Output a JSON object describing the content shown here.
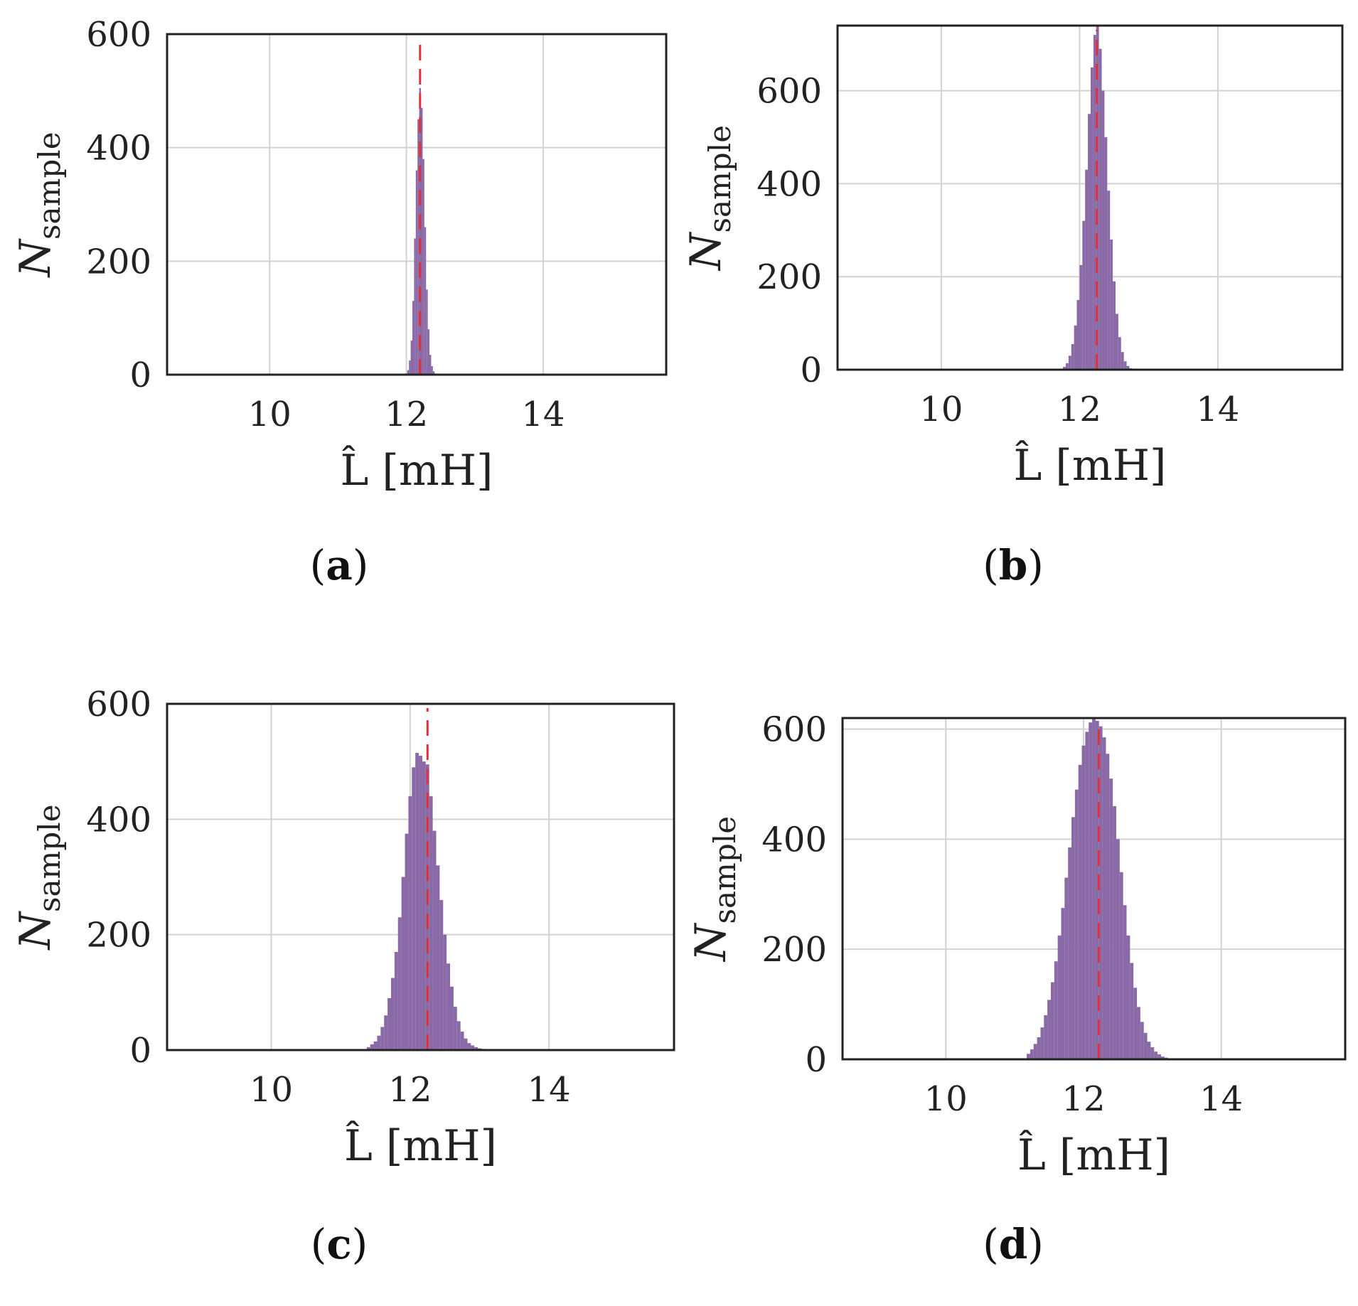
{
  "colors": {
    "bars": "#8a6aa6",
    "reference_line": "#e0303a",
    "grid": "#d2d2d2",
    "axis": "#222222"
  },
  "chart_data": [
    {
      "type": "bar",
      "caption": "(a)",
      "caption_letter": "a",
      "xlabel": "L̂ [mH]",
      "ylabel": "N",
      "ylabel_sub": "sample",
      "xlim": [
        8.5,
        15.8
      ],
      "ylim": [
        0,
        600
      ],
      "xticks": [
        10,
        12,
        14
      ],
      "yticks": [
        0,
        200,
        400,
        600
      ],
      "grid": true,
      "reference_x": 12.2,
      "bin_width": 0.025,
      "bin_centers": [
        12.0,
        12.025,
        12.05,
        12.075,
        12.1,
        12.125,
        12.15,
        12.175,
        12.2,
        12.225,
        12.25,
        12.275,
        12.3,
        12.325,
        12.35,
        12.375,
        12.4,
        12.425
      ],
      "counts": [
        2,
        8,
        25,
        60,
        130,
        240,
        360,
        450,
        505,
        470,
        380,
        260,
        150,
        80,
        35,
        15,
        6,
        2
      ]
    },
    {
      "type": "bar",
      "caption": "(b)",
      "caption_letter": "b",
      "xlabel": "L̂ [mH]",
      "ylabel": "N",
      "ylabel_sub": "sample",
      "xlim": [
        8.5,
        15.8
      ],
      "ylim": [
        0,
        740
      ],
      "xticks": [
        10,
        12,
        14
      ],
      "yticks": [
        0,
        200,
        400,
        600
      ],
      "grid": true,
      "reference_x": 12.25,
      "bin_width": 0.04,
      "bin_centers": [
        11.74,
        11.78,
        11.82,
        11.86,
        11.9,
        11.94,
        11.98,
        12.02,
        12.06,
        12.1,
        12.14,
        12.18,
        12.22,
        12.26,
        12.3,
        12.34,
        12.38,
        12.42,
        12.46,
        12.5,
        12.54,
        12.58,
        12.62,
        12.66,
        12.7,
        12.74
      ],
      "counts": [
        2,
        6,
        14,
        30,
        55,
        95,
        150,
        225,
        320,
        430,
        550,
        650,
        720,
        740,
        690,
        600,
        500,
        385,
        280,
        190,
        120,
        70,
        38,
        18,
        8,
        3
      ]
    },
    {
      "type": "bar",
      "caption": "(c)",
      "caption_letter": "c",
      "xlabel": "L̂ [mH]",
      "ylabel": "N",
      "ylabel_sub": "sample",
      "xlim": [
        8.5,
        15.8
      ],
      "ylim": [
        0,
        600
      ],
      "xticks": [
        10,
        12,
        14
      ],
      "yticks": [
        0,
        200,
        400,
        600
      ],
      "grid": true,
      "reference_x": 12.25,
      "bin_width": 0.05,
      "bin_centers": [
        11.4,
        11.45,
        11.5,
        11.55,
        11.6,
        11.65,
        11.7,
        11.75,
        11.8,
        11.85,
        11.9,
        11.95,
        12.0,
        12.05,
        12.1,
        12.15,
        12.2,
        12.25,
        12.3,
        12.35,
        12.4,
        12.45,
        12.5,
        12.55,
        12.6,
        12.65,
        12.7,
        12.75,
        12.8,
        12.85,
        12.9,
        12.95,
        13.0,
        13.05,
        13.1
      ],
      "counts": [
        5,
        10,
        15,
        25,
        40,
        60,
        90,
        125,
        170,
        230,
        300,
        375,
        440,
        490,
        515,
        510,
        500,
        495,
        440,
        380,
        320,
        260,
        200,
        150,
        110,
        75,
        50,
        32,
        20,
        12,
        8,
        5,
        3,
        2,
        1
      ]
    },
    {
      "type": "bar",
      "caption": "(d)",
      "caption_letter": "d",
      "xlabel": "L̂ [mH]",
      "ylabel": "N",
      "ylabel_sub": "sample",
      "xlim": [
        8.5,
        15.8
      ],
      "ylim": [
        0,
        620
      ],
      "xticks": [
        10,
        12,
        14
      ],
      "yticks": [
        0,
        200,
        400,
        600
      ],
      "grid": true,
      "reference_x": 12.22,
      "bin_width": 0.05,
      "bin_centers": [
        11.2,
        11.25,
        11.3,
        11.35,
        11.4,
        11.45,
        11.5,
        11.55,
        11.6,
        11.65,
        11.7,
        11.75,
        11.8,
        11.85,
        11.9,
        11.95,
        12.0,
        12.05,
        12.1,
        12.15,
        12.2,
        12.25,
        12.3,
        12.35,
        12.4,
        12.45,
        12.5,
        12.55,
        12.6,
        12.65,
        12.7,
        12.75,
        12.8,
        12.85,
        12.9,
        12.95,
        13.0,
        13.05,
        13.1,
        13.15,
        13.2
      ],
      "counts": [
        10,
        18,
        28,
        40,
        58,
        80,
        108,
        140,
        178,
        225,
        275,
        330,
        385,
        440,
        490,
        535,
        570,
        595,
        612,
        620,
        615,
        605,
        585,
        555,
        510,
        460,
        400,
        340,
        280,
        225,
        175,
        130,
        95,
        68,
        48,
        32,
        22,
        14,
        9,
        5,
        3
      ]
    }
  ]
}
